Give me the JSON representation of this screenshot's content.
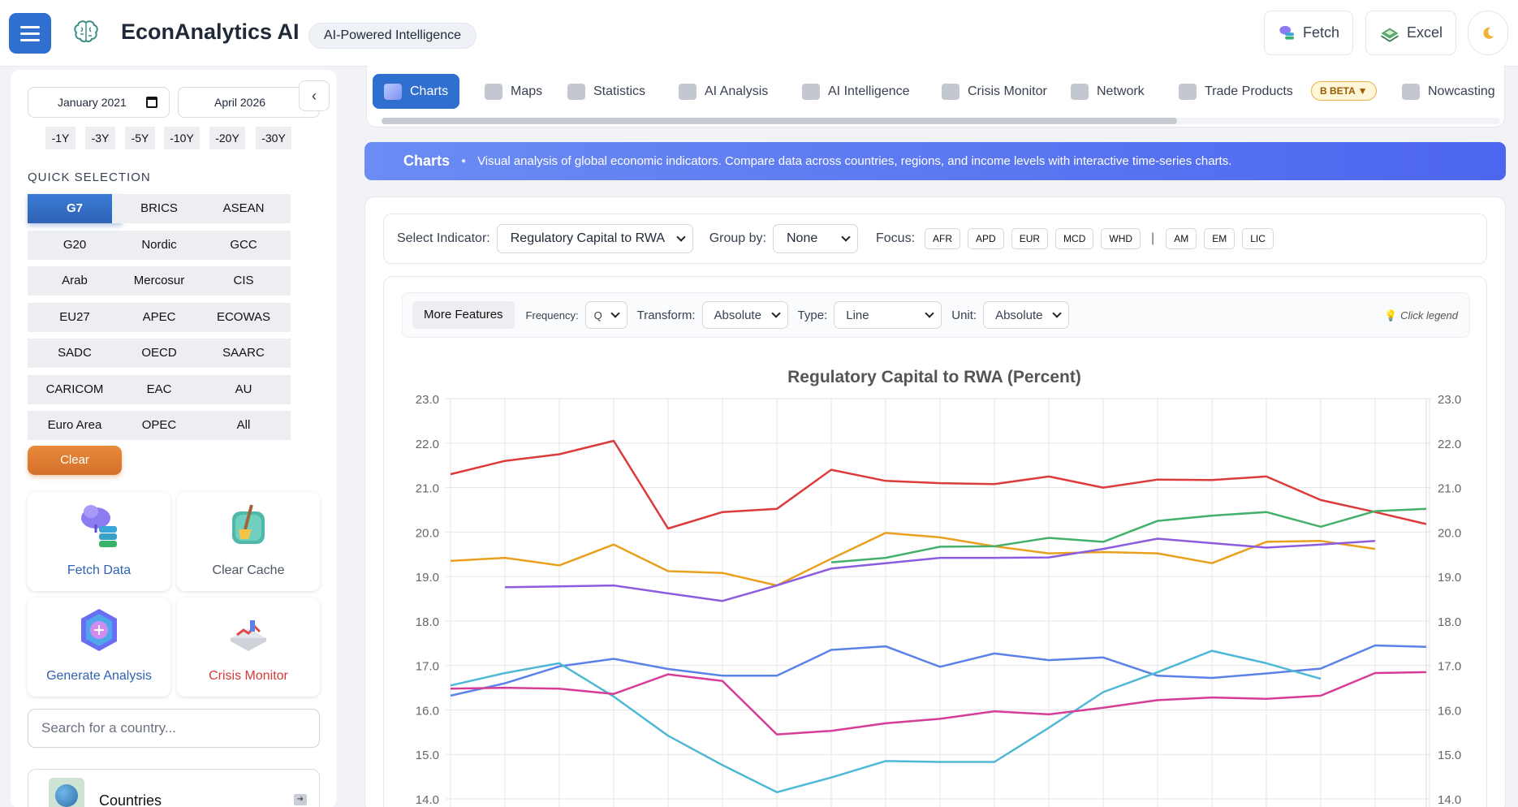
{
  "header": {
    "title": "EconAnalytics AI",
    "badge": "AI-Powered Intelligence",
    "fetch_label": "Fetch",
    "excel_label": "Excel"
  },
  "sidebar": {
    "start_date": "January 2021",
    "end_date": "April 2026",
    "ranges": [
      "-1Y",
      "-3Y",
      "-5Y",
      "-10Y",
      "-20Y",
      "-30Y"
    ],
    "quick_selection_title": "QUICK SELECTION",
    "groups": [
      "G7",
      "BRICS",
      "ASEAN",
      "G20",
      "Nordic",
      "GCC",
      "Arab",
      "Mercosur",
      "CIS",
      "EU27",
      "APEC",
      "ECOWAS",
      "SADC",
      "OECD",
      "SAARC",
      "CARICOM",
      "EAC",
      "AU",
      "Euro Area",
      "OPEC",
      "All"
    ],
    "active_group": "G7",
    "clear_label": "Clear",
    "cards": [
      "Fetch Data",
      "Clear Cache",
      "Generate Analysis",
      "Crisis Monitor"
    ],
    "search_placeholder": "Search for a country...",
    "countries_label": "Countries"
  },
  "tabs": {
    "items": [
      "Charts",
      "Maps",
      "Statistics",
      "AI Analysis",
      "AI Intelligence",
      "Crisis Monitor",
      "Network",
      "Trade Products",
      "Nowcasting"
    ],
    "active": "Charts",
    "beta_label": "B BETA ▼"
  },
  "banner": {
    "title": "Charts",
    "description": "Visual analysis of global economic indicators. Compare data across countries, regions, and income levels with interactive time-series charts."
  },
  "controls": {
    "indicator_label": "Select Indicator:",
    "indicator_value": "Regulatory Capital to RWA",
    "group_by_label": "Group by:",
    "group_by_value": "None",
    "focus_label": "Focus:",
    "focus_items": [
      "AFR",
      "APD",
      "EUR",
      "MCD",
      "WHD"
    ],
    "focus_items_2": [
      "AM",
      "EM",
      "LIC"
    ]
  },
  "toolbar": {
    "more_features": "More Features",
    "frequency_label": "Frequency:",
    "frequency_value": "Q",
    "transform_label": "Transform:",
    "transform_value": "Absolute",
    "type_label": "Type:",
    "type_value": "Line",
    "unit_label": "Unit:",
    "unit_value": "Absolute",
    "hint": "Click legend"
  },
  "chart_data": {
    "type": "line",
    "title": "Regulatory Capital to RWA (Percent)",
    "ylim": [
      14.0,
      23.0
    ],
    "yticks": [
      "23.0",
      "22.0",
      "21.0",
      "20.0",
      "19.0",
      "18.0",
      "17.0",
      "16.0",
      "15.0",
      "14.0"
    ],
    "grid": true,
    "series": [
      {
        "color": "#dc3b3b",
        "values": [
          21.3,
          21.6,
          21.75,
          22.05,
          20.08,
          20.45,
          20.52,
          21.4,
          21.15,
          21.1,
          21.08,
          21.25,
          21.0,
          21.18,
          21.17,
          21.25,
          20.72,
          20.45,
          20.18
        ]
      },
      {
        "color": "#e8a01e",
        "values": [
          19.35,
          19.42,
          19.25,
          19.72,
          19.12,
          19.08,
          18.8,
          19.4,
          19.98,
          19.88,
          19.68,
          19.52,
          19.55,
          19.52,
          19.3,
          19.78,
          19.8,
          19.62,
          null
        ]
      },
      {
        "color": "#44b06a",
        "values": [
          null,
          null,
          null,
          null,
          null,
          null,
          null,
          19.32,
          19.42,
          19.67,
          19.68,
          19.87,
          19.78,
          20.25,
          20.37,
          20.45,
          20.12,
          20.47,
          20.52
        ]
      },
      {
        "color": "#8c5ce0",
        "values": [
          null,
          18.76,
          18.78,
          18.8,
          18.62,
          18.45,
          18.8,
          19.18,
          19.3,
          19.42,
          19.42,
          19.43,
          19.62,
          19.85,
          19.75,
          19.65,
          19.72,
          19.8,
          null
        ]
      },
      {
        "color": "#5a82e8",
        "values": [
          16.32,
          16.6,
          16.98,
          17.15,
          16.92,
          16.77,
          16.77,
          17.35,
          17.43,
          16.97,
          17.27,
          17.12,
          17.18,
          16.77,
          16.72,
          16.82,
          16.93,
          17.45,
          17.42
        ]
      },
      {
        "color": "#4fb8d6",
        "values": [
          16.55,
          16.83,
          17.05,
          16.3,
          15.42,
          14.76,
          14.15,
          14.48,
          14.85,
          14.83,
          14.83,
          15.6,
          16.4,
          16.85,
          17.33,
          17.05,
          16.7,
          null,
          null
        ]
      },
      {
        "color": "#d63d96",
        "values": [
          16.48,
          16.5,
          16.48,
          16.36,
          16.8,
          16.65,
          15.45,
          15.53,
          15.7,
          15.8,
          15.97,
          15.9,
          16.05,
          16.22,
          16.28,
          16.25,
          16.32,
          16.83,
          16.85
        ]
      }
    ]
  }
}
